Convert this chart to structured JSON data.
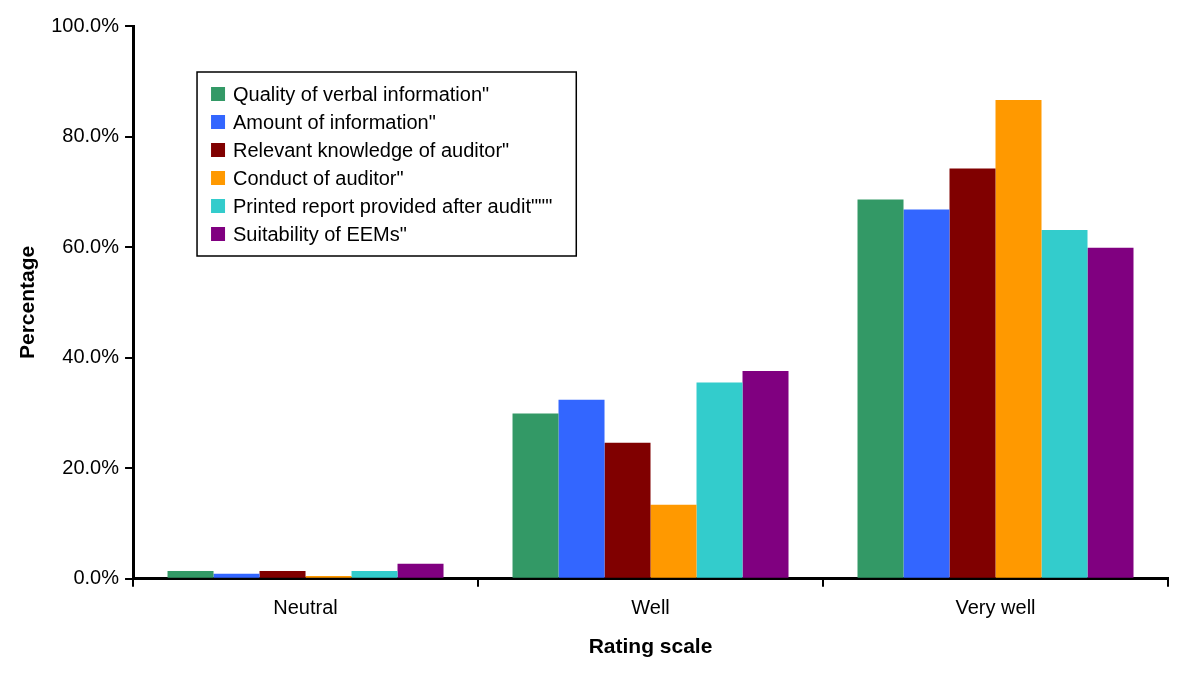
{
  "chart_data": {
    "type": "bar",
    "xlabel": "Rating scale",
    "ylabel": "Percentage",
    "categories": [
      "Neutral",
      "Well",
      "Very well"
    ],
    "series": [
      {
        "name": "Quality of verbal information\"",
        "color": "#339966",
        "values": [
          1.4,
          29.9,
          68.6
        ]
      },
      {
        "name": "Amount of information\"",
        "color": "#3366ff",
        "values": [
          0.9,
          32.4,
          66.8
        ]
      },
      {
        "name": "Relevant knowledge of auditor\"",
        "color": "#800000",
        "values": [
          1.4,
          24.6,
          74.2
        ]
      },
      {
        "name": "Conduct of auditor\"",
        "color": "#ff9900",
        "values": [
          0.5,
          13.4,
          86.6
        ]
      },
      {
        "name": "Printed report provided after audit\"\"\"",
        "color": "#33cccc",
        "values": [
          1.4,
          35.5,
          63.1
        ]
      },
      {
        "name": "Suitability of EEMs\"",
        "color": "#800080",
        "values": [
          2.7,
          37.6,
          59.9
        ]
      }
    ],
    "ylim": [
      0,
      100
    ],
    "yticks": [
      {
        "value": 0,
        "label": "0.0%"
      },
      {
        "value": 20,
        "label": "20.0%"
      },
      {
        "value": 40,
        "label": "40.0%"
      },
      {
        "value": 60,
        "label": "60.0%"
      },
      {
        "value": 80,
        "label": "80.0%"
      },
      {
        "value": 100,
        "label": "100.0%"
      }
    ],
    "grid": false,
    "legend": "top left"
  }
}
